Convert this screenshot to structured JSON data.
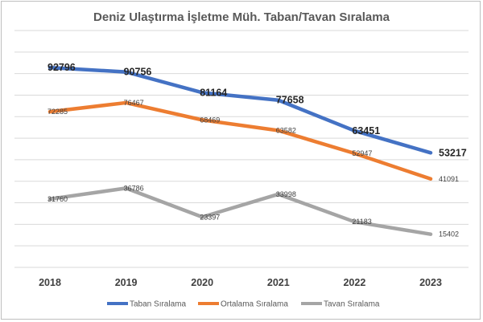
{
  "chart_data": {
    "type": "line",
    "title": "Deniz Ulaştırma İşletme Müh. Taban/Tavan Sıralama",
    "xlabel": "",
    "ylabel": "",
    "ylim": [
      0,
      110000
    ],
    "grid": true,
    "legend_position": "bottom",
    "categories": [
      "2018",
      "2019",
      "2020",
      "2021",
      "2022",
      "2023"
    ],
    "series": [
      {
        "name": "Taban Sıralama",
        "color": "#4472c4",
        "values": [
          92796,
          90756,
          81164,
          77658,
          63451,
          53217
        ],
        "labels": [
          "92796",
          "90756",
          "81164",
          "77658",
          "63451",
          "53217"
        ]
      },
      {
        "name": "Ortalama Sıralama",
        "color": "#ed7d31",
        "values": [
          72285,
          76467,
          68469,
          63582,
          52947,
          41091
        ],
        "labels": [
          "72285",
          "76467",
          "68469",
          "63582",
          "52947",
          "41091"
        ]
      },
      {
        "name": "Tavan Sıralama",
        "color": "#a5a5a5",
        "values": [
          31760,
          36786,
          23397,
          33998,
          21183,
          15402
        ],
        "labels": [
          "31760",
          "36786",
          "23397",
          "33998",
          "21183",
          "15402"
        ]
      }
    ]
  }
}
